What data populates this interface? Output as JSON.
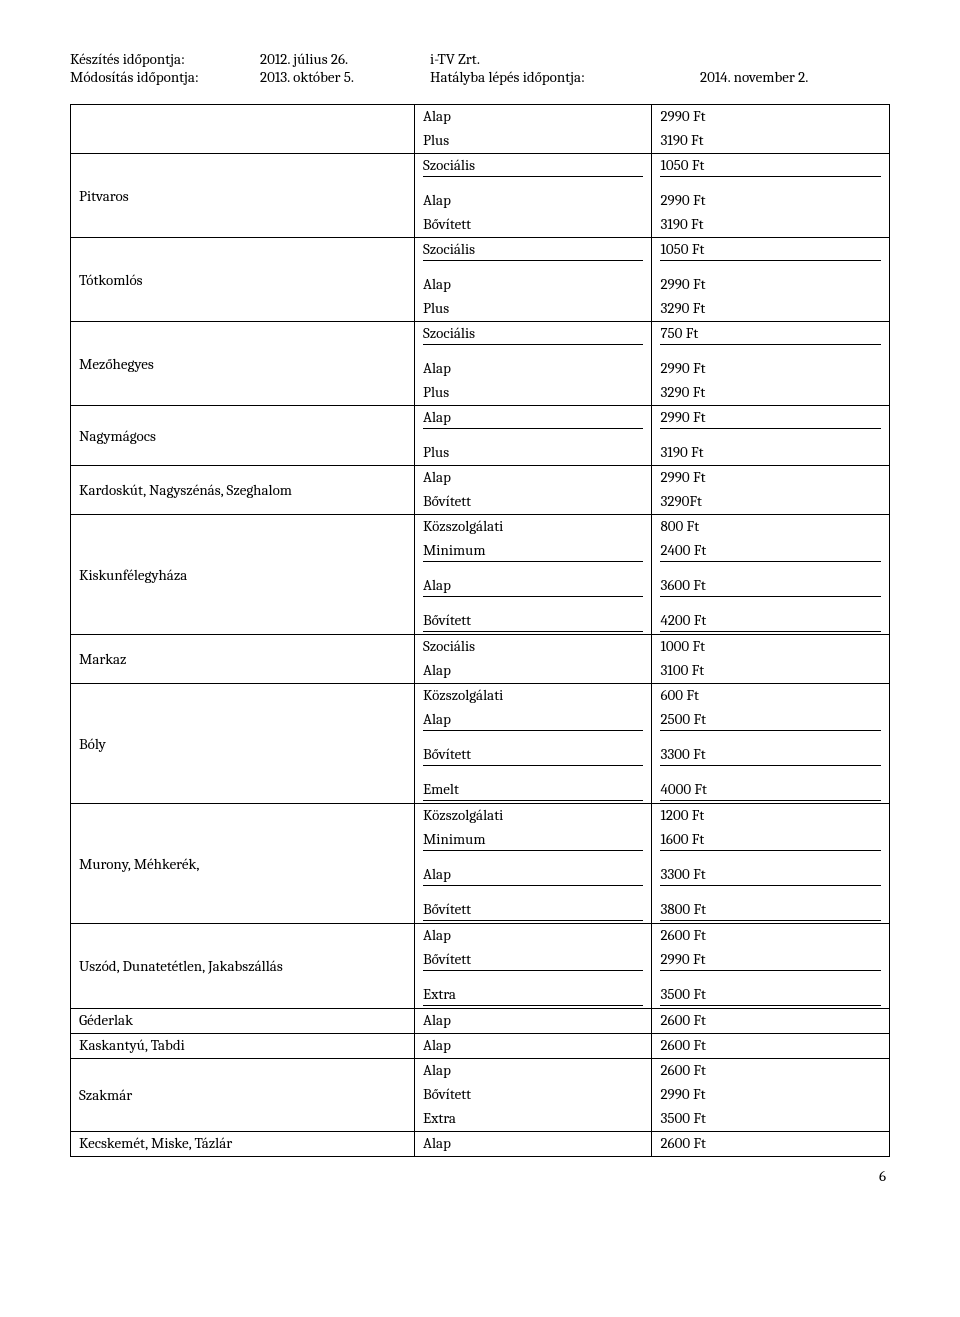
{
  "header": {
    "prep_label": "Készítés időpontja:",
    "prep_date": "2012. július 26.",
    "company": "i-TV Zrt.",
    "mod_label": "Módosítás időpontja:",
    "mod_date": "2013. október 5.",
    "eff_label": "Hatályba lépés időpontja:",
    "eff_date": "2014. november 2."
  },
  "rows": [
    {
      "loc": "",
      "sep": false,
      "plan": "Alap",
      "price": "2990 Ft",
      "rowspanLoc": 2
    },
    {
      "loc": null,
      "sep": true,
      "plan": "Plus",
      "price": "3190 Ft"
    },
    {
      "loc": "Pitvaros",
      "sep": false,
      "plan": "Szociális",
      "price": "1050 Ft",
      "rowspanLoc": 3,
      "middle": true
    },
    {
      "loc": null,
      "sep": false,
      "plan": "Alap",
      "price": "2990 Ft"
    },
    {
      "loc": null,
      "sep": true,
      "plan": "Bővített",
      "price": "3190 Ft"
    },
    {
      "loc": "Tótkomlós",
      "sep": false,
      "plan": "Szociális",
      "price": "1050 Ft",
      "rowspanLoc": 3,
      "middle": true
    },
    {
      "loc": null,
      "sep": false,
      "plan": "Alap",
      "price": "2990 Ft"
    },
    {
      "loc": null,
      "sep": true,
      "plan": "Plus",
      "price": "3290 Ft"
    },
    {
      "loc": "Mezőhegyes",
      "sep": false,
      "plan": "Szociális",
      "price": "750 Ft",
      "rowspanLoc": 3,
      "middle": true
    },
    {
      "loc": null,
      "sep": false,
      "plan": "Alap",
      "price": "2990 Ft"
    },
    {
      "loc": null,
      "sep": true,
      "plan": "Plus",
      "price": "3290 Ft"
    },
    {
      "loc": "Nagymágocs",
      "sep": false,
      "plan": "Alap",
      "price": "2990 Ft",
      "rowspanLoc": 2,
      "middle": true
    },
    {
      "loc": null,
      "sep": true,
      "plan": "Plus",
      "price": "3190 Ft"
    },
    {
      "loc": "Kardoskút, Nagyszénás, Szeghalom",
      "sep": false,
      "plan": "Alap",
      "price": "2990 Ft",
      "rowspanLoc": 2,
      "middle": true
    },
    {
      "loc": null,
      "sep": true,
      "plan": "Bővített",
      "price": "3290Ft"
    },
    {
      "loc": "Kiskunfélegyháza",
      "sep": false,
      "plan": "Közszolgálati",
      "price": "800 Ft",
      "rowspanLoc": 4,
      "middle": true
    },
    {
      "loc": null,
      "sep": false,
      "plan": "Minimum",
      "price": "2400 Ft"
    },
    {
      "loc": null,
      "sep": false,
      "plan": "Alap",
      "price": "3600 Ft"
    },
    {
      "loc": null,
      "sep": true,
      "plan": "Bővített",
      "price": "4200 Ft"
    },
    {
      "loc": "Markaz",
      "sep": false,
      "plan": "Szociális",
      "price": "1000 Ft",
      "rowspanLoc": 2,
      "middle": true
    },
    {
      "loc": null,
      "sep": true,
      "plan": "Alap",
      "price": "3100 Ft"
    },
    {
      "loc": "Bóly",
      "sep": false,
      "plan": "Közszolgálati",
      "price": "600 Ft",
      "rowspanLoc": 4,
      "middle": true
    },
    {
      "loc": null,
      "sep": false,
      "plan": "Alap",
      "price": "2500 Ft"
    },
    {
      "loc": null,
      "sep": false,
      "plan": "Bővített",
      "price": "3300 Ft"
    },
    {
      "loc": null,
      "sep": true,
      "plan": "Emelt",
      "price": "4000 Ft"
    },
    {
      "loc": "Murony, Méhkerék,",
      "sep": false,
      "plan": "Közszolgálati",
      "price": "1200 Ft",
      "rowspanLoc": 4,
      "middle": true
    },
    {
      "loc": null,
      "sep": false,
      "plan": "Minimum",
      "price": "1600 Ft"
    },
    {
      "loc": null,
      "sep": false,
      "plan": "Alap",
      "price": "3300 Ft"
    },
    {
      "loc": null,
      "sep": true,
      "plan": "Bővített",
      "price": "3800 Ft"
    },
    {
      "loc": "Uszód, Dunatetétlen, Jakabszállás",
      "sep": false,
      "plan": "Alap",
      "price": "2600 Ft",
      "rowspanLoc": 3,
      "middle": true
    },
    {
      "loc": null,
      "sep": false,
      "plan": "Bővített",
      "price": "2990 Ft"
    },
    {
      "loc": null,
      "sep": true,
      "plan": "Extra",
      "price": "3500 Ft"
    },
    {
      "loc": "Géderlak",
      "sep": true,
      "plan": "Alap",
      "price": "2600 Ft",
      "rowspanLoc": 1
    },
    {
      "loc": "Kaskantyú,  Tabdi",
      "sep": true,
      "plan": "Alap",
      "price": "2600 Ft",
      "rowspanLoc": 1
    },
    {
      "loc": "Szakmár",
      "sep": false,
      "plan": "Alap",
      "price": "2600 Ft",
      "rowspanLoc": 3,
      "middle": true
    },
    {
      "loc": null,
      "sep": false,
      "plan": "Bővített",
      "price": "2990 Ft"
    },
    {
      "loc": null,
      "sep": true,
      "plan": "Extra",
      "price": "3500 Ft"
    },
    {
      "loc": "Kecskemét, Miske, Tázlár",
      "sep": true,
      "plan": "Alap",
      "price": "2600 Ft",
      "rowspanLoc": 1
    }
  ],
  "pageNumber": "6",
  "innerSep": [
    2,
    5,
    8,
    11,
    16,
    17,
    18,
    22,
    23,
    24,
    26,
    27,
    28,
    30,
    31
  ],
  "spacerHeight": "10px"
}
